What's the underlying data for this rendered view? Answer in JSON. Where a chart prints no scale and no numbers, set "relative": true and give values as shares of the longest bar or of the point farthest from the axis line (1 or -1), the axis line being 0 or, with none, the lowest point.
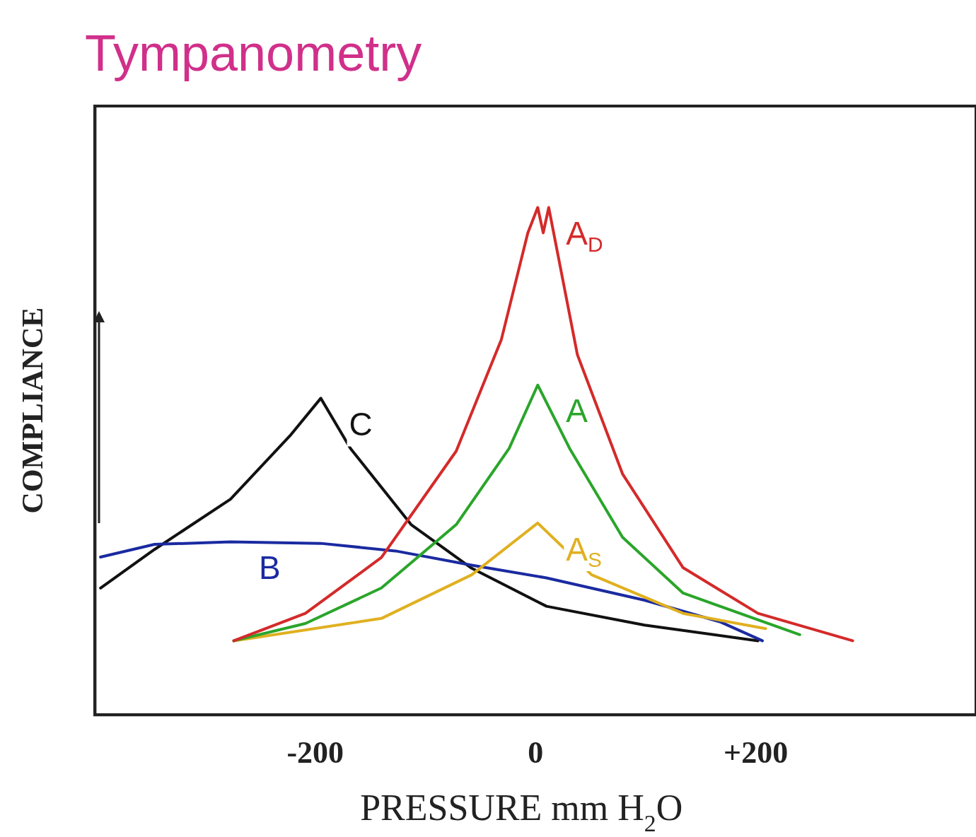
{
  "chart_data": {
    "type": "line",
    "title": "Tympanometry",
    "xlabel": "PRESSURE mm H$_{2}$O",
    "ylabel": "COMPLIANCE",
    "relative": true,
    "xlim": [
      -400,
      400
    ],
    "xticks": [
      -200,
      0,
      {
        "value": 200,
        "label": "+200"
      }
    ],
    "tick_labels": "x",
    "grid": false,
    "legend": false,
    "marker": "none",
    "line_style": "solid",
    "series": [
      {
        "name": "A$_{D}$",
        "color": "#d42a2a",
        "x": [
          -274,
          -209,
          -140,
          -72,
          -31,
          -7,
          2,
          7,
          12,
          38,
          79,
          134,
          202,
          288
        ],
        "values": [
          0.146,
          0.2,
          0.31,
          0.52,
          0.74,
          0.95,
          1.0,
          0.95,
          1.0,
          0.71,
          0.475,
          0.29,
          0.2,
          0.146
        ]
      },
      {
        "name": "A",
        "color": "#2aa52a",
        "x": [
          -274,
          -209,
          -140,
          -72,
          -24,
          2,
          31,
          79,
          134,
          240
        ],
        "values": [
          0.146,
          0.18,
          0.25,
          0.375,
          0.525,
          0.65,
          0.525,
          0.35,
          0.24,
          0.158
        ]
      },
      {
        "name": "A$_{S}$",
        "color": "#e0b020",
        "x": [
          -274,
          -140,
          -58,
          2,
          51,
          134,
          209
        ],
        "values": [
          0.146,
          0.19,
          0.276,
          0.378,
          0.276,
          0.2,
          0.17
        ]
      },
      {
        "name": "B",
        "color": "#1a2aa0",
        "x": [
          -395,
          -346,
          -277,
          -195,
          -127,
          -58,
          10,
          99,
          168,
          206
        ],
        "values": [
          0.311,
          0.336,
          0.341,
          0.338,
          0.323,
          0.295,
          0.27,
          0.226,
          0.183,
          0.146
        ]
      },
      {
        "name": "C",
        "color": "#111111",
        "x": [
          -395,
          -346,
          -277,
          -223,
          -195,
          -168,
          -113,
          -58,
          10,
          99,
          202
        ],
        "values": [
          0.25,
          0.326,
          0.425,
          0.55,
          0.624,
          0.525,
          0.375,
          0.289,
          0.214,
          0.177,
          0.146
        ]
      }
    ]
  }
}
